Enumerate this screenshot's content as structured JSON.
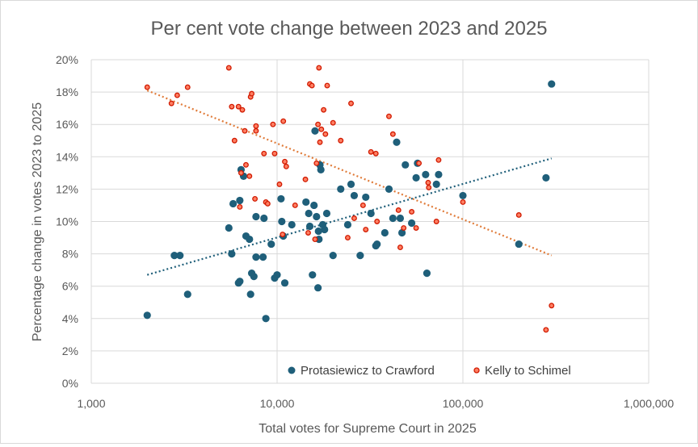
{
  "chart_data": {
    "type": "scatter",
    "title": "Per cent vote change between 2023 and 2025",
    "xlabel": "Total votes for Supreme Court in 2025",
    "ylabel": "Percentage  change in votes 2023 to 2025",
    "xscale": "log",
    "xlim": [
      1000,
      1000000
    ],
    "ylim": [
      0,
      20
    ],
    "x_ticks": [
      "1,000",
      "10,000",
      "100,000",
      "1,000,000"
    ],
    "y_ticks": [
      "0%",
      "2%",
      "4%",
      "6%",
      "8%",
      "10%",
      "12%",
      "14%",
      "16%",
      "18%",
      "20%"
    ],
    "grid": "vertical and horizontal",
    "legend_position": "bottom-right",
    "series": [
      {
        "name": "Protasiewicz to Crawford",
        "color": "#1f5f7a",
        "marker": "filled-circle",
        "trendline": {
          "type": "log",
          "x": [
            2000,
            300000
          ],
          "y": [
            6.7,
            13.9
          ],
          "style": "dotted"
        },
        "points": [
          [
            2000,
            4.2
          ],
          [
            2800,
            7.9
          ],
          [
            3000,
            7.9
          ],
          [
            3300,
            5.5
          ],
          [
            5500,
            9.6
          ],
          [
            5700,
            8.0
          ],
          [
            5800,
            11.1
          ],
          [
            6200,
            6.2
          ],
          [
            6300,
            11.3
          ],
          [
            6300,
            6.3
          ],
          [
            6400,
            13.2
          ],
          [
            6600,
            12.8
          ],
          [
            6800,
            9.1
          ],
          [
            7100,
            8.9
          ],
          [
            7200,
            5.5
          ],
          [
            7300,
            6.8
          ],
          [
            7500,
            6.6
          ],
          [
            7700,
            7.8
          ],
          [
            7700,
            10.3
          ],
          [
            8400,
            7.8
          ],
          [
            8500,
            10.2
          ],
          [
            8700,
            4.0
          ],
          [
            9300,
            8.6
          ],
          [
            9700,
            6.5
          ],
          [
            10000,
            6.7
          ],
          [
            10500,
            11.4
          ],
          [
            10600,
            10.0
          ],
          [
            10800,
            9.1
          ],
          [
            11000,
            6.2
          ],
          [
            12000,
            9.8
          ],
          [
            14300,
            11.2
          ],
          [
            14800,
            10.5
          ],
          [
            15000,
            9.7
          ],
          [
            15500,
            6.7
          ],
          [
            15800,
            11.0
          ],
          [
            16000,
            15.6
          ],
          [
            16300,
            10.3
          ],
          [
            16600,
            5.9
          ],
          [
            16700,
            9.4
          ],
          [
            16800,
            8.9
          ],
          [
            17000,
            13.5
          ],
          [
            17200,
            13.2
          ],
          [
            17600,
            9.8
          ],
          [
            18000,
            9.5
          ],
          [
            18500,
            10.5
          ],
          [
            20000,
            7.9
          ],
          [
            22000,
            12.0
          ],
          [
            24000,
            9.8
          ],
          [
            25000,
            12.3
          ],
          [
            26000,
            11.6
          ],
          [
            28000,
            7.9
          ],
          [
            30000,
            11.5
          ],
          [
            32000,
            10.5
          ],
          [
            34000,
            8.5
          ],
          [
            34500,
            8.6
          ],
          [
            38000,
            9.3
          ],
          [
            40000,
            12.0
          ],
          [
            42000,
            10.2
          ],
          [
            44000,
            14.9
          ],
          [
            46000,
            10.2
          ],
          [
            47000,
            9.3
          ],
          [
            49000,
            13.5
          ],
          [
            53000,
            9.9
          ],
          [
            56000,
            12.7
          ],
          [
            57000,
            13.6
          ],
          [
            63000,
            12.9
          ],
          [
            64000,
            6.8
          ],
          [
            72000,
            12.3
          ],
          [
            74000,
            12.9
          ],
          [
            100000,
            11.6
          ],
          [
            200000,
            8.6
          ],
          [
            280000,
            12.7
          ],
          [
            300000,
            18.5
          ]
        ]
      },
      {
        "name": "Kelly to Schimel",
        "color": "#d11a00",
        "fill": "#ff7f63",
        "marker": "small-circle",
        "trendline": {
          "type": "log",
          "x": [
            2000,
            300000
          ],
          "y": [
            18.1,
            7.9
          ],
          "style": "dotted"
        },
        "points": [
          [
            2000,
            18.3
          ],
          [
            2700,
            17.3
          ],
          [
            2900,
            17.8
          ],
          [
            3300,
            18.3
          ],
          [
            5500,
            19.5
          ],
          [
            5700,
            17.1
          ],
          [
            5900,
            15.0
          ],
          [
            6200,
            17.1
          ],
          [
            6300,
            10.9
          ],
          [
            6400,
            13.0
          ],
          [
            6500,
            16.9
          ],
          [
            6700,
            15.6
          ],
          [
            6800,
            13.5
          ],
          [
            7100,
            12.8
          ],
          [
            7200,
            17.7
          ],
          [
            7300,
            17.9
          ],
          [
            7600,
            11.4
          ],
          [
            7700,
            15.9
          ],
          [
            7700,
            15.6
          ],
          [
            8500,
            14.2
          ],
          [
            8700,
            11.2
          ],
          [
            8900,
            11.1
          ],
          [
            9500,
            16.0
          ],
          [
            9700,
            14.2
          ],
          [
            10300,
            12.3
          ],
          [
            10700,
            9.2
          ],
          [
            10800,
            16.2
          ],
          [
            11000,
            13.7
          ],
          [
            11200,
            13.4
          ],
          [
            12500,
            11.0
          ],
          [
            14200,
            12.6
          ],
          [
            14700,
            9.3
          ],
          [
            15000,
            18.5
          ],
          [
            15400,
            18.4
          ],
          [
            16000,
            8.9
          ],
          [
            16300,
            13.6
          ],
          [
            16600,
            16.0
          ],
          [
            16800,
            19.5
          ],
          [
            17000,
            14.9
          ],
          [
            17300,
            15.7
          ],
          [
            17800,
            16.9
          ],
          [
            18200,
            15.4
          ],
          [
            18600,
            18.4
          ],
          [
            20000,
            16.1
          ],
          [
            22000,
            15.0
          ],
          [
            24000,
            9.0
          ],
          [
            25000,
            17.3
          ],
          [
            26000,
            10.2
          ],
          [
            29000,
            11.0
          ],
          [
            30000,
            9.5
          ],
          [
            32000,
            14.3
          ],
          [
            34000,
            14.2
          ],
          [
            34500,
            10.0
          ],
          [
            40000,
            16.5
          ],
          [
            42000,
            15.4
          ],
          [
            45000,
            10.7
          ],
          [
            46000,
            8.4
          ],
          [
            48000,
            9.6
          ],
          [
            53000,
            10.6
          ],
          [
            56000,
            9.6
          ],
          [
            58000,
            13.6
          ],
          [
            65000,
            12.4
          ],
          [
            65500,
            12.1
          ],
          [
            72000,
            10.0
          ],
          [
            74000,
            13.8
          ],
          [
            100000,
            11.2
          ],
          [
            200000,
            10.4
          ],
          [
            280000,
            3.3
          ],
          [
            300000,
            4.8
          ]
        ]
      }
    ]
  }
}
